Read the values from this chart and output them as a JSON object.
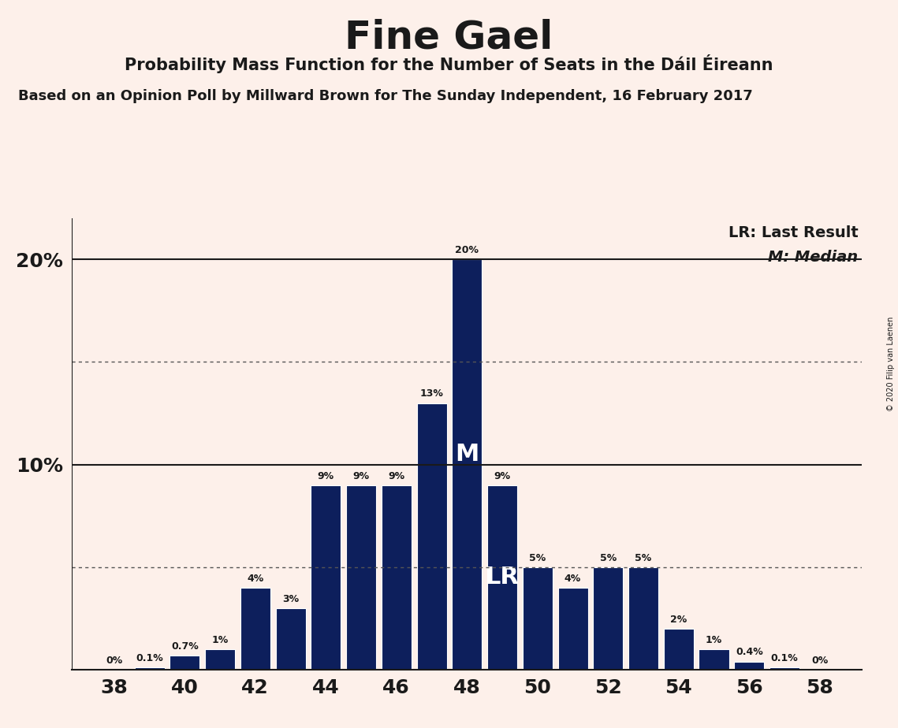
{
  "title": "Fine Gael",
  "subtitle": "Probability Mass Function for the Number of Seats in the Dáil Éireann",
  "source": "Based on an Opinion Poll by Millward Brown for The Sunday Independent, 16 February 2017",
  "copyright": "© 2020 Filip van Laenen",
  "seats": [
    38,
    39,
    40,
    41,
    42,
    43,
    44,
    45,
    46,
    47,
    48,
    49,
    50,
    51,
    52,
    53,
    54,
    55,
    56,
    57,
    58
  ],
  "probabilities": [
    0.0,
    0.1,
    0.7,
    1.0,
    4.0,
    3.0,
    9.0,
    9.0,
    9.0,
    13.0,
    20.0,
    9.0,
    5.0,
    4.0,
    5.0,
    5.0,
    2.0,
    1.0,
    0.4,
    0.1,
    0.0
  ],
  "bar_color": "#0d1f5c",
  "background_color": "#fdf0ea",
  "last_result": 49,
  "median": 48,
  "xticks": [
    38,
    40,
    42,
    44,
    46,
    48,
    50,
    52,
    54,
    56,
    58
  ],
  "hline_solid": [
    10,
    20
  ],
  "hline_dotted": [
    5,
    15
  ],
  "legend_lr": "LR: Last Result",
  "legend_m": "M: Median",
  "ylim": [
    0,
    22
  ],
  "bar_width": 0.85
}
